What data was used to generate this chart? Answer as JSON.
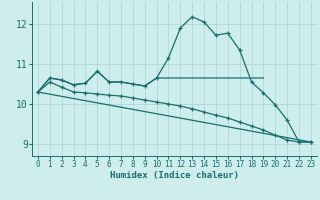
{
  "title": "",
  "xlabel": "Humidex (Indice chaleur)",
  "bg_color": "#ceeeed",
  "grid_color": "#aed8d5",
  "line_color": "#1a6e6e",
  "xlim": [
    -0.5,
    23.5
  ],
  "ylim": [
    8.7,
    12.55
  ],
  "xticks": [
    0,
    1,
    2,
    3,
    4,
    5,
    6,
    7,
    8,
    9,
    10,
    11,
    12,
    13,
    14,
    15,
    16,
    17,
    18,
    19,
    20,
    21,
    22,
    23
  ],
  "yticks": [
    9,
    10,
    11,
    12
  ],
  "line1_x": [
    0,
    1,
    2,
    3,
    4,
    5,
    6,
    7,
    8,
    9,
    10,
    11,
    12,
    13,
    14,
    15,
    16,
    17,
    18,
    19,
    20,
    21,
    22,
    23
  ],
  "line1_y": [
    10.3,
    10.65,
    10.6,
    10.48,
    10.52,
    10.82,
    10.55,
    10.55,
    10.5,
    10.45,
    10.65,
    11.15,
    11.9,
    12.18,
    12.05,
    11.72,
    11.77,
    11.35,
    10.55,
    10.28,
    9.98,
    9.6,
    9.05,
    9.05
  ],
  "line2_x": [
    0,
    1,
    2,
    3,
    4,
    5,
    6,
    7,
    8,
    9,
    10,
    11,
    12,
    13,
    14,
    15,
    16,
    17,
    18,
    19
  ],
  "line2_y": [
    10.3,
    10.65,
    10.6,
    10.48,
    10.52,
    10.82,
    10.55,
    10.55,
    10.5,
    10.45,
    10.65,
    10.65,
    10.65,
    10.65,
    10.65,
    10.65,
    10.65,
    10.65,
    10.65,
    10.65
  ],
  "line3_x": [
    0,
    1,
    2,
    3,
    4,
    5,
    6,
    7,
    8,
    9,
    10,
    11,
    12,
    13,
    14,
    15,
    16,
    17,
    18,
    19,
    20,
    21,
    22,
    23
  ],
  "line3_y": [
    10.3,
    10.55,
    10.42,
    10.3,
    10.28,
    10.25,
    10.22,
    10.2,
    10.15,
    10.1,
    10.05,
    10.0,
    9.95,
    9.88,
    9.8,
    9.72,
    9.65,
    9.55,
    9.45,
    9.35,
    9.22,
    9.1,
    9.05,
    9.05
  ],
  "line4_x": [
    0,
    23
  ],
  "line4_y": [
    10.3,
    9.05
  ],
  "marker": "+"
}
